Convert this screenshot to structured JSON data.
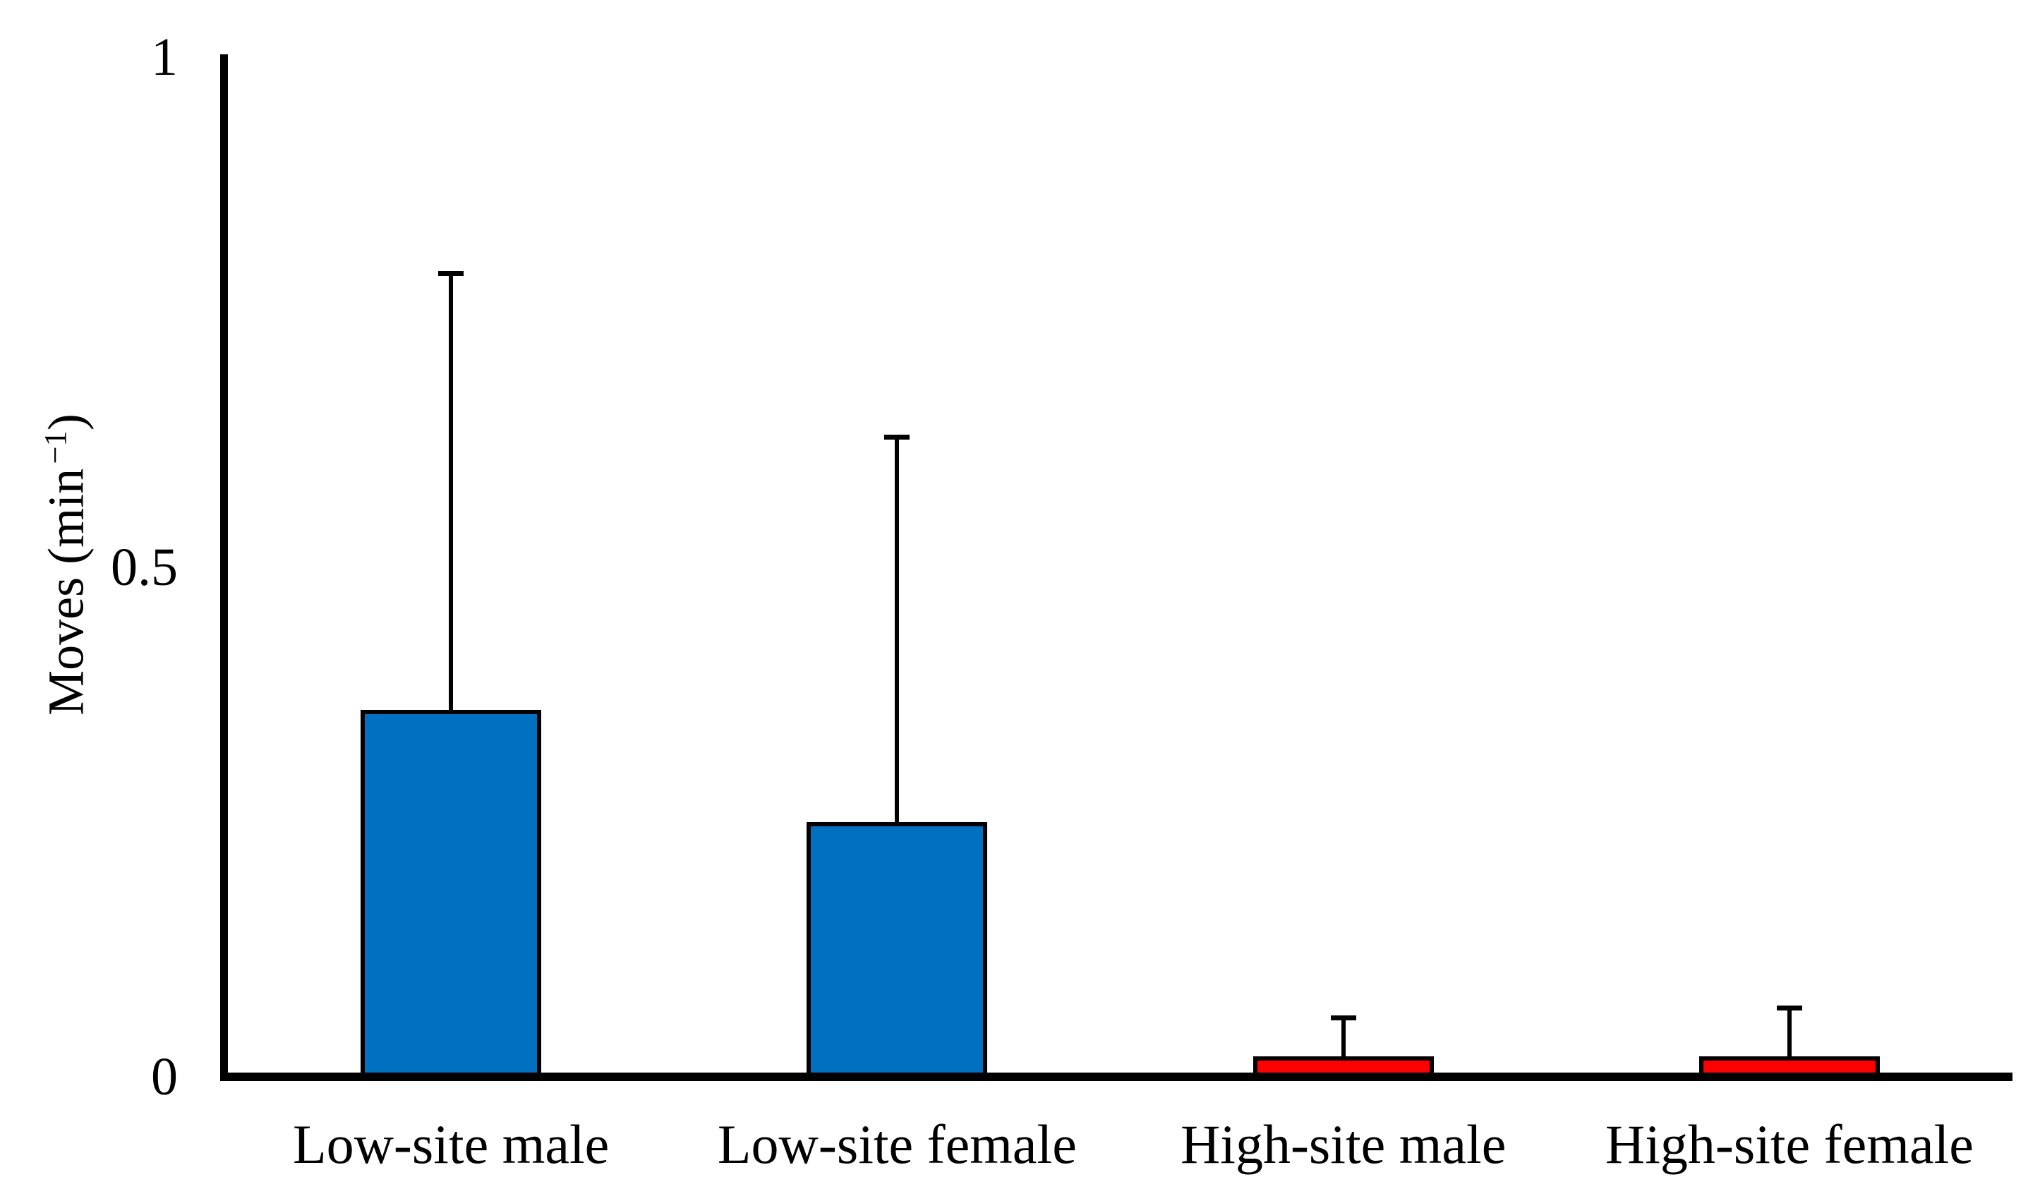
{
  "figure": {
    "background_color": "#FFFFFF",
    "axis_color": "#000000"
  },
  "y_axis": {
    "title_main": "Moves (min",
    "title_sup": "−1",
    "title_close": ")",
    "ticks": [
      {
        "label": "1",
        "value": 1
      },
      {
        "label": "0.5",
        "value": 0.5
      },
      {
        "label": "0",
        "value": 0
      }
    ]
  },
  "chart_data": {
    "type": "bar",
    "title": "",
    "xlabel": "",
    "ylabel": "Moves (min −1)",
    "categories": [
      "Low-site male",
      "Low-site female",
      "High-site male",
      "High-site female"
    ],
    "values": [
      0.36,
      0.25,
      0.02,
      0.02
    ],
    "error_top": [
      0.79,
      0.63,
      0.06,
      0.07
    ],
    "error_bar_style": "upper whisker only, flat cap",
    "bar_colors": [
      "#0070C0",
      "#0070C0",
      "#FF0000",
      "#FF0000"
    ],
    "bar_outline_color": "#000000",
    "ylim": [
      0,
      1
    ],
    "ytick_values": [
      0,
      0.5,
      1
    ],
    "grid": false,
    "legend": null
  }
}
